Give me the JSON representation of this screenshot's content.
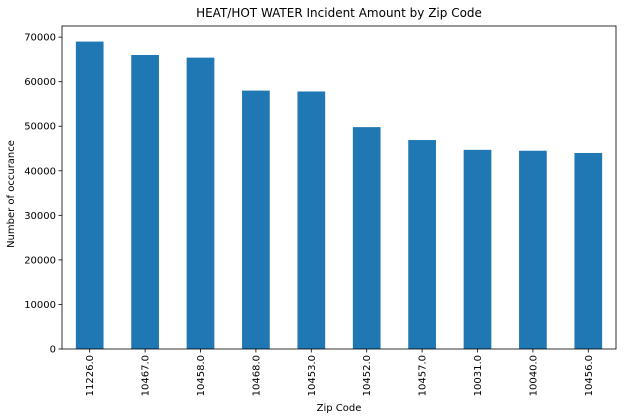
{
  "chart_data": {
    "type": "bar",
    "title": "HEAT/HOT WATER Incident Amount by Zip Code",
    "xlabel": "Zip Code",
    "ylabel": "Number of occurance",
    "categories": [
      "11226.0",
      "10467.0",
      "10458.0",
      "10468.0",
      "10453.0",
      "10452.0",
      "10457.0",
      "10031.0",
      "10040.0",
      "10456.0"
    ],
    "values": [
      69000,
      66000,
      65400,
      58000,
      57800,
      49800,
      46900,
      44700,
      44500,
      44000
    ],
    "ylim": [
      0,
      72500
    ],
    "yticks": [
      0,
      10000,
      20000,
      30000,
      40000,
      50000,
      60000,
      70000
    ],
    "grid": false,
    "legend": "none",
    "bar_color": "#1f77b4"
  }
}
